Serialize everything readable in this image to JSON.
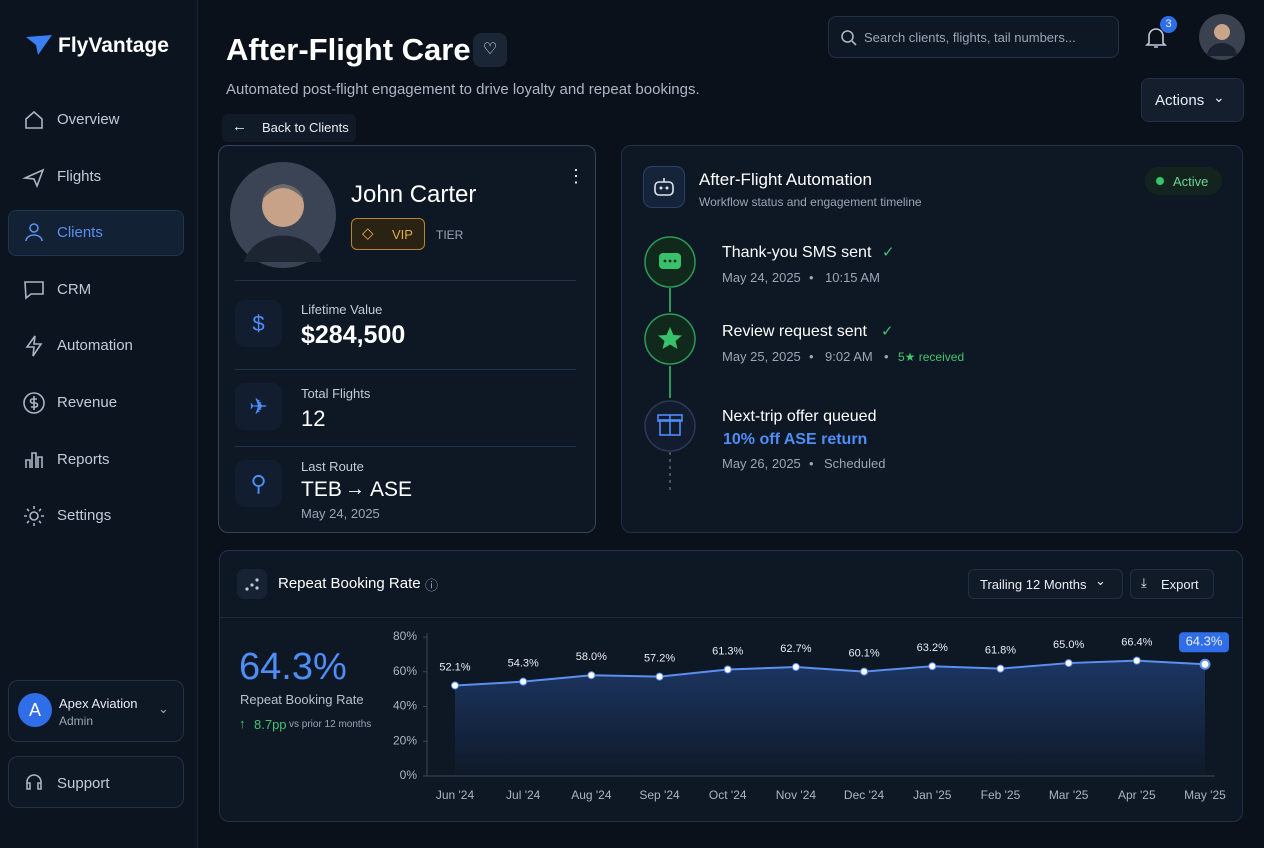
{
  "brand": "FlyVantage",
  "nav": [
    "Overview",
    "Flights",
    "Clients",
    "CRM",
    "Automation",
    "Revenue",
    "Reports",
    "Settings"
  ],
  "account": {
    "name": "Apex Aviation",
    "role": "Admin",
    "initial": "A"
  },
  "support": "Support",
  "header": {
    "title": "After-Flight Care",
    "subtitle": "Automated post-flight engagement to drive loyalty and repeat bookings.",
    "search": "Search clients, flights, tail numbers...",
    "notifications": 3,
    "actions": "Actions",
    "back": "Back to Clients"
  },
  "client": {
    "name": "John Carter",
    "tier": "VIP",
    "tier_label": "TIER",
    "stats": [
      {
        "label": "Lifetime Value",
        "value": "$284,500"
      },
      {
        "label": "Total Flights",
        "value": "12"
      }
    ],
    "route": {
      "label": "Last Route",
      "from": "TEB",
      "to": "ASE",
      "date": "May 24, 2025"
    }
  },
  "automation": {
    "title": "After-Flight Automation",
    "subtitle": "Workflow status and engagement timeline",
    "status": "Active",
    "steps": [
      {
        "title": "Thank-you SMS sent",
        "date": "May 24, 2025",
        "time": "10:15 AM"
      },
      {
        "title": "Review request sent",
        "date": "May 25, 2025",
        "time": "9:02 AM",
        "note": "5★ received"
      },
      {
        "title": "Next-trip offer queued",
        "offer": "10% off ASE return",
        "date": "May 26, 2025",
        "time": "Scheduled"
      }
    ]
  },
  "kpi": {
    "value": "64.3%",
    "label": "Repeat Booking Rate",
    "change": "8.7pp",
    "change_note": "vs prior 12 months",
    "range": "Trailing 12 Months",
    "export": "Export"
  },
  "chart_data": {
    "type": "line",
    "title": "Repeat Booking Rate",
    "categories": [
      "Jun '24",
      "Jul '24",
      "Aug '24",
      "Sep '24",
      "Oct '24",
      "Nov '24",
      "Dec '24",
      "Jan '25",
      "Feb '25",
      "Mar '25",
      "Apr '25",
      "May '25"
    ],
    "values": [
      52.1,
      54.3,
      58.0,
      57.2,
      61.3,
      62.7,
      60.1,
      63.2,
      61.8,
      65.0,
      66.4,
      64.3
    ],
    "value_labels": [
      "52.1%",
      "54.3%",
      "58.0%",
      "57.2%",
      "61.3%",
      "62.7%",
      "60.1%",
      "63.2%",
      "61.8%",
      "65.0%",
      "66.4%",
      "64.3%"
    ],
    "color": "#5b8ff0",
    "ylim": [
      0,
      80
    ],
    "yticks": [
      {
        "value": 0,
        "label": "0%"
      },
      {
        "value": 20,
        "label": "20%"
      },
      {
        "value": 40,
        "label": "40%"
      },
      {
        "value": 60,
        "label": "60%"
      },
      {
        "value": 80,
        "label": "80%"
      }
    ],
    "grid": false
  }
}
